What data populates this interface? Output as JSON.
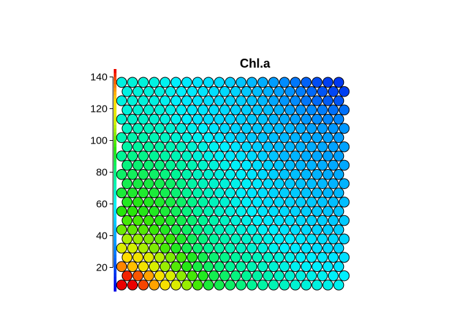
{
  "chart_data": {
    "type": "heatmap",
    "subtype": "som-hexagonal-property-map",
    "title": "Chl.a",
    "xlabel": "",
    "ylabel": "",
    "grid": {
      "columns": 21,
      "rows": 23,
      "topology": "hexagonal"
    },
    "colorbar": {
      "position": "left",
      "ylim": [
        5,
        145
      ],
      "ticks": [
        20,
        40,
        60,
        80,
        100,
        120,
        140
      ],
      "tick_labels": [
        "20",
        "40",
        "60",
        "80",
        "100",
        "120",
        "140"
      ],
      "palette": "rainbow (blue low → red high)"
    },
    "value_range": [
      0,
      100
    ],
    "node_values_note": "one value per node, row 0 = bottom row, column 0 = left; scale 0 (blue) to 100 (red)",
    "node_values": [
      [
        100,
        100,
        96,
        90,
        84,
        78,
        72,
        66,
        60,
        58,
        56,
        54,
        52,
        50,
        48,
        46,
        44,
        43,
        42,
        41,
        40
      ],
      [
        98,
        95,
        90,
        84,
        77,
        71,
        66,
        62,
        58,
        56,
        54,
        52,
        50,
        48,
        46,
        44,
        42,
        41,
        40,
        39,
        38
      ],
      [
        92,
        88,
        83,
        77,
        72,
        67,
        63,
        59,
        56,
        54,
        52,
        50,
        48,
        46,
        44,
        42,
        40,
        39,
        38,
        37,
        36
      ],
      [
        86,
        83,
        79,
        74,
        70,
        66,
        62,
        58,
        55,
        53,
        51,
        49,
        47,
        45,
        43,
        41,
        39,
        38,
        37,
        36,
        35
      ],
      [
        78,
        76,
        73,
        70,
        66,
        62,
        58,
        55,
        52,
        50,
        48,
        46,
        44,
        42,
        40,
        38,
        37,
        36,
        35,
        34,
        33
      ],
      [
        73,
        72,
        70,
        68,
        65,
        61,
        57,
        54,
        51,
        49,
        47,
        45,
        43,
        41,
        39,
        38,
        37,
        36,
        35,
        34,
        33
      ],
      [
        69,
        68,
        67,
        65,
        62,
        59,
        56,
        53,
        50,
        47,
        45,
        43,
        41,
        39,
        38,
        36,
        35,
        34,
        33,
        32,
        32
      ],
      [
        66,
        66,
        65,
        63,
        61,
        58,
        55,
        52,
        49,
        46,
        43,
        41,
        39,
        37,
        36,
        35,
        34,
        33,
        32,
        31,
        31
      ],
      [
        64,
        64,
        63,
        62,
        60,
        57,
        54,
        51,
        48,
        45,
        42,
        40,
        38,
        36,
        35,
        34,
        33,
        32,
        31,
        30,
        30
      ],
      [
        62,
        63,
        62,
        61,
        59,
        56,
        53,
        50,
        47,
        44,
        41,
        39,
        37,
        35,
        34,
        33,
        32,
        31,
        30,
        29,
        29
      ],
      [
        60,
        61,
        61,
        60,
        58,
        55,
        52,
        49,
        46,
        43,
        41,
        38,
        36,
        35,
        33,
        32,
        31,
        30,
        29,
        28,
        28
      ],
      [
        58,
        59,
        59,
        58,
        56,
        53,
        50,
        47,
        45,
        43,
        41,
        39,
        37,
        35,
        33,
        31,
        30,
        29,
        28,
        27,
        27
      ],
      [
        56,
        57,
        57,
        56,
        54,
        52,
        49,
        46,
        44,
        42,
        40,
        38,
        36,
        34,
        32,
        30,
        29,
        28,
        27,
        26,
        26
      ],
      [
        54,
        55,
        55,
        54,
        52,
        50,
        48,
        45,
        43,
        41,
        39,
        37,
        35,
        33,
        31,
        29,
        28,
        27,
        26,
        25,
        25
      ],
      [
        52,
        53,
        53,
        52,
        50,
        48,
        46,
        43,
        41,
        39,
        37,
        36,
        34,
        32,
        30,
        28,
        27,
        26,
        25,
        24,
        24
      ],
      [
        50,
        51,
        51,
        50,
        48,
        46,
        44,
        42,
        40,
        38,
        36,
        34,
        32,
        30,
        29,
        28,
        27,
        26,
        25,
        24,
        24
      ],
      [
        48,
        49,
        49,
        48,
        46,
        44,
        42,
        40,
        38,
        36,
        34,
        32,
        31,
        30,
        29,
        28,
        27,
        26,
        25,
        24,
        23
      ],
      [
        46,
        47,
        47,
        46,
        44,
        42,
        40,
        38,
        36,
        34,
        33,
        32,
        31,
        30,
        29,
        28,
        26,
        24,
        23,
        22,
        22
      ],
      [
        44,
        45,
        45,
        44,
        42,
        40,
        38,
        36,
        35,
        34,
        33,
        32,
        31,
        30,
        28,
        26,
        24,
        22,
        20,
        19,
        19
      ],
      [
        43,
        44,
        44,
        43,
        41,
        39,
        37,
        36,
        35,
        34,
        33,
        32,
        31,
        29,
        27,
        24,
        22,
        20,
        18,
        16,
        16
      ],
      [
        42,
        43,
        43,
        42,
        40,
        38,
        37,
        36,
        35,
        34,
        33,
        32,
        30,
        28,
        25,
        22,
        20,
        17,
        15,
        13,
        12
      ],
      [
        42,
        43,
        43,
        42,
        40,
        38,
        37,
        36,
        35,
        34,
        33,
        31,
        29,
        27,
        24,
        21,
        18,
        15,
        12,
        10,
        9
      ],
      [
        42,
        43,
        43,
        42,
        40,
        38,
        37,
        36,
        35,
        34,
        32,
        30,
        28,
        26,
        23,
        20,
        17,
        14,
        11,
        9,
        8
      ]
    ]
  }
}
